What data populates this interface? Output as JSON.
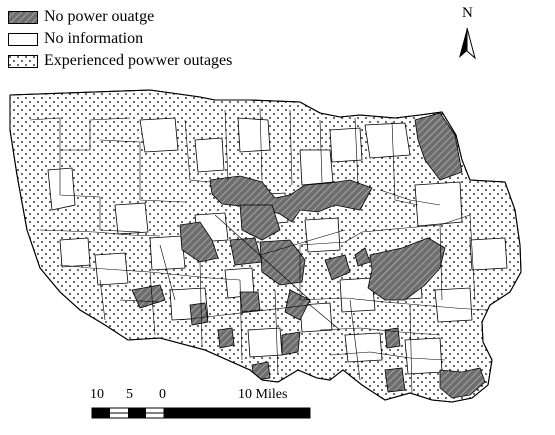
{
  "legend": {
    "items": [
      {
        "label": "No power ouatge",
        "pattern": "hatch"
      },
      {
        "label": "No information",
        "pattern": "blank"
      },
      {
        "label": "Experienced powwer outages",
        "pattern": "dots"
      }
    ]
  },
  "north_arrow": {
    "label": "N"
  },
  "scale_bar": {
    "labels": [
      "10",
      "5",
      "0",
      "10 Miles"
    ]
  },
  "colors": {
    "outline": "#000000",
    "hatch_fill": "#6e6e6e",
    "background": "#ffffff"
  }
}
